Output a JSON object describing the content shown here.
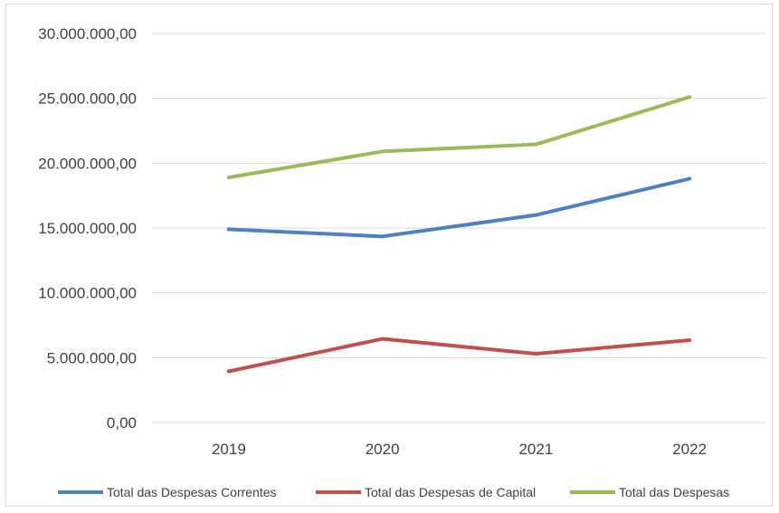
{
  "chart_data": {
    "type": "line",
    "title": "",
    "xlabel": "",
    "ylabel": "",
    "categories": [
      "2019",
      "2020",
      "2021",
      "2022"
    ],
    "ylim": [
      0,
      30000000
    ],
    "y_ticks": [
      0,
      5000000,
      10000000,
      15000000,
      20000000,
      25000000,
      30000000
    ],
    "y_tick_labels": [
      "0,00",
      "5.000.000,00",
      "10.000.000,00",
      "15.000.000,00",
      "20.000.000,00",
      "25.000.000,00",
      "30.000.000,00"
    ],
    "grid": true,
    "legend_position": "bottom",
    "series": [
      {
        "name": "Total das Despesas Correntes",
        "color": "#4f81bd",
        "values": [
          14900000,
          14350000,
          16000000,
          18800000
        ]
      },
      {
        "name": "Total das Despesas de Capital",
        "color": "#c0504d",
        "values": [
          3950000,
          6450000,
          5300000,
          6350000
        ]
      },
      {
        "name": "Total das Despesas",
        "color": "#9bbb59",
        "values": [
          18900000,
          20900000,
          21450000,
          25100000
        ]
      }
    ]
  }
}
